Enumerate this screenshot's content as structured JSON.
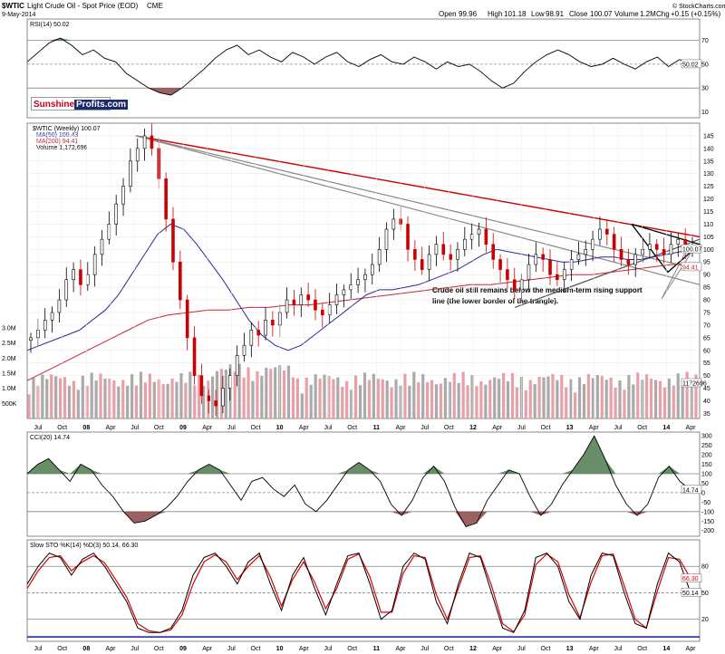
{
  "header": {
    "symbol": "$WTIC",
    "description": "Light Crude Oil - Spot Price (EOD)",
    "exchange": "CME",
    "source": "© StockCharts.com",
    "date": "9-May-2014",
    "open_label": "Open",
    "open": "99.96",
    "high_label": "High",
    "high": "101.18",
    "low_label": "Low",
    "low": "98.91",
    "close_label": "Close",
    "close": "100.07",
    "volume_label": "Volume",
    "volume": "1.2M",
    "chg_label": "Chg",
    "chg": "+0.15 (+0.15%)"
  },
  "logo": {
    "part1": "Sunshine",
    "part2": "Profits.com"
  },
  "colors": {
    "price_up": "#000000",
    "price_down": "#cc0000",
    "ma50": "#2a2a9a",
    "ma200": "#cc2233",
    "volume_up": "#aaaaaa",
    "volume_down": "#e8a0a8",
    "overbought_fill": "#4e7a4e",
    "oversold_fill": "#8a4545",
    "resistance": "#cc0000",
    "trend_gray": "#888888",
    "stoch_d": "#dd0000",
    "baseline": "#1a1aaa"
  },
  "annotation": {
    "text1": "Crude oil still remains below the medium-term rising support",
    "text2": "line (the lower border of the trangle)."
  },
  "chart_data": [
    {
      "id": "rsi",
      "type": "line",
      "title": "RSI(14) 50.02",
      "last_value": "50.02",
      "yticks": [
        "70",
        "50",
        "30",
        "10"
      ],
      "ylim": [
        5,
        88
      ],
      "levels": [
        70,
        30
      ],
      "series": [
        {
          "name": "RSI(14)",
          "values": [
            52,
            60,
            68,
            72,
            66,
            58,
            62,
            55,
            52,
            42,
            36,
            30,
            26,
            24,
            30,
            38,
            46,
            55,
            62,
            66,
            58,
            62,
            56,
            52,
            60,
            56,
            50,
            56,
            60,
            52,
            48,
            54,
            58,
            52,
            50,
            56,
            52,
            46,
            52,
            48,
            50,
            44,
            36,
            30,
            34,
            44,
            52,
            58,
            62,
            58,
            52,
            48,
            50,
            55,
            50,
            46,
            52,
            56,
            48,
            54,
            50
          ]
        }
      ]
    },
    {
      "id": "price",
      "type": "candlestick",
      "title": "$WTIC (Weekly) 100.07",
      "legend": [
        "MA(50) 100.43",
        "MA(200) 94.41",
        "Volume 1,172,696"
      ],
      "last_close": "100.07",
      "ma50_last": "100.43",
      "ma200_last": "94.41",
      "ylim": [
        33,
        150
      ],
      "yticks": [
        "145",
        "140",
        "135",
        "130",
        "125",
        "120",
        "115",
        "110",
        "105",
        "100",
        "95",
        "90",
        "85",
        "80",
        "75",
        "70",
        "65",
        "60",
        "55",
        "50",
        "45",
        "40",
        "35"
      ],
      "volume_ticks": [
        "3.0M",
        "2.5M",
        "2.0M",
        "1.5M",
        "1.0M",
        "500K"
      ],
      "volume_last": "1172696",
      "series": [
        {
          "name": "WTIC close",
          "values": [
            65,
            68,
            72,
            75,
            80,
            88,
            92,
            86,
            90,
            98,
            104,
            110,
            118,
            125,
            135,
            140,
            145,
            140,
            128,
            112,
            95,
            80,
            65,
            50,
            42,
            40,
            38,
            45,
            50,
            58,
            62,
            68,
            66,
            72,
            70,
            75,
            80,
            78,
            82,
            80,
            76,
            74,
            78,
            82,
            84,
            86,
            88,
            90,
            94,
            100,
            108,
            112,
            110,
            100,
            96,
            92,
            98,
            102,
            98,
            96,
            100,
            104,
            106,
            108,
            102,
            96,
            92,
            88,
            84,
            88,
            94,
            98,
            96,
            90,
            88,
            92,
            96,
            98,
            100,
            104,
            108,
            106,
            100,
            96,
            94,
            98,
            100,
            102,
            100,
            98,
            102,
            104,
            100,
            100
          ]
        },
        {
          "name": "MA(50)",
          "values": [
            60,
            62,
            64,
            66,
            68,
            72,
            76,
            82,
            90,
            98,
            106,
            110,
            108,
            102,
            95,
            88,
            80,
            72,
            66,
            62,
            60,
            62,
            66,
            70,
            74,
            78,
            82,
            84,
            84,
            85,
            86,
            88,
            90,
            92,
            95,
            98,
            100,
            99,
            98,
            97,
            96,
            95,
            95,
            96,
            97,
            97,
            96,
            96,
            97,
            98,
            99,
            100
          ]
        },
        {
          "name": "MA(200)",
          "values": [
            48,
            52,
            56,
            60,
            64,
            68,
            72,
            74,
            75,
            76,
            76,
            77,
            77,
            78,
            78,
            79,
            80,
            81,
            82,
            83,
            84,
            85,
            86,
            86,
            87,
            88,
            89,
            90,
            90,
            91,
            92,
            93,
            94,
            94
          ]
        }
      ],
      "xticks": [
        "Jul",
        "Oct",
        "08",
        "Apr",
        "Jul",
        "Oct",
        "09",
        "Apr",
        "Jul",
        "Oct",
        "10",
        "Apr",
        "Jul",
        "Oct",
        "11",
        "Apr",
        "Jul",
        "Oct",
        "12",
        "Apr",
        "Jul",
        "Oct",
        "13",
        "Apr",
        "Jul",
        "Oct",
        "14",
        "Apr"
      ]
    },
    {
      "id": "cci",
      "type": "line",
      "title": "CCI(20) 14.74",
      "last_value": "14.74",
      "yticks": [
        "300",
        "250",
        "200",
        "150",
        "100",
        "50",
        "0",
        "-50",
        "-100",
        "-150",
        "-200"
      ],
      "ylim": [
        -230,
        320
      ],
      "levels": [
        100,
        -100
      ],
      "series": [
        {
          "name": "CCI(20)",
          "values": [
            100,
            150,
            180,
            120,
            60,
            150,
            120,
            40,
            -20,
            -100,
            -160,
            -150,
            -120,
            -80,
            -20,
            60,
            120,
            150,
            120,
            40,
            -40,
            60,
            80,
            20,
            -20,
            40,
            -60,
            -100,
            -40,
            40,
            120,
            160,
            120,
            60,
            -60,
            -120,
            -40,
            80,
            140,
            60,
            -80,
            -180,
            -160,
            -40,
            40,
            120,
            100,
            -20,
            -120,
            -60,
            40,
            120,
            200,
            300,
            180,
            40,
            -60,
            -120,
            -60,
            80,
            140,
            60,
            14.74
          ]
        }
      ]
    },
    {
      "id": "stoch",
      "type": "line",
      "title": "Slow STO %K(14) %D(3) 50.14, 66.30",
      "k_last": "50.14",
      "d_last": "66.30",
      "yticks": [
        "80",
        "50",
        "20"
      ],
      "ylim": [
        -5,
        110
      ],
      "levels": [
        80,
        20
      ],
      "series": [
        {
          "name": "%K(14)",
          "values": [
            60,
            80,
            95,
            90,
            70,
            88,
            95,
            80,
            60,
            40,
            10,
            5,
            5,
            10,
            30,
            70,
            90,
            95,
            80,
            60,
            85,
            95,
            60,
            30,
            70,
            90,
            55,
            25,
            60,
            92,
            95,
            60,
            20,
            30,
            80,
            95,
            88,
            40,
            15,
            60,
            95,
            90,
            50,
            10,
            5,
            30,
            90,
            95,
            80,
            40,
            20,
            70,
            95,
            92,
            50,
            15,
            10,
            60,
            95,
            85,
            50.14
          ]
        },
        {
          "name": "%D(3)",
          "values": [
            55,
            75,
            90,
            92,
            75,
            85,
            92,
            84,
            65,
            45,
            15,
            7,
            5,
            8,
            25,
            60,
            85,
            93,
            85,
            65,
            80,
            92,
            68,
            35,
            65,
            85,
            62,
            32,
            55,
            88,
            94,
            68,
            28,
            28,
            72,
            92,
            90,
            48,
            20,
            55,
            90,
            92,
            58,
            15,
            6,
            25,
            82,
            94,
            85,
            48,
            22,
            62,
            92,
            94,
            58,
            20,
            10,
            52,
            90,
            88,
            66.3
          ]
        }
      ],
      "xticks": [
        "Jul",
        "Oct",
        "08",
        "Apr",
        "Jul",
        "Oct",
        "09",
        "Apr",
        "Jul",
        "Oct",
        "10",
        "Apr",
        "Jul",
        "Oct",
        "11",
        "Apr",
        "Jul",
        "Oct",
        "12",
        "Apr",
        "Jul",
        "Oct",
        "13",
        "Apr",
        "Jul",
        "Oct",
        "14",
        "Apr"
      ]
    }
  ]
}
